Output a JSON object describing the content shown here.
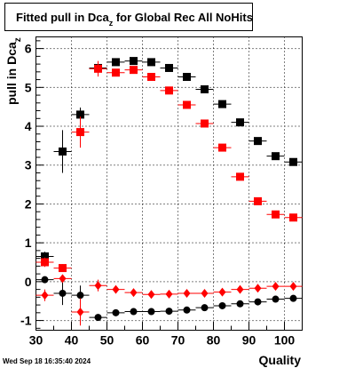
{
  "title": {
    "prefix": "Fitted pull in Dca",
    "subscript": "z",
    "suffix": " for Global Rec All NoHits"
  },
  "timestamp": "Wed Sep 18 16:35:40 2024",
  "chart_data": {
    "type": "scatter",
    "title": "Fitted pull in Dca_z for Global Rec All NoHits",
    "xlabel": "Quality",
    "ylabel": {
      "prefix": "pull in Dca",
      "subscript": "z"
    },
    "xlim": [
      30,
      105
    ],
    "ylim": [
      -1.25,
      6.3
    ],
    "xticks": [
      30,
      40,
      50,
      60,
      70,
      80,
      90,
      100
    ],
    "yticks": [
      -1,
      0,
      1,
      2,
      3,
      4,
      5,
      6
    ],
    "grid": true,
    "series": [
      {
        "marker": "square",
        "color": "#000000",
        "points": [
          {
            "x": 32.5,
            "y": 0.65,
            "yerr": 0.12
          },
          {
            "x": 37.5,
            "y": 3.35,
            "yerr": 0.55
          },
          {
            "x": 42.5,
            "y": 4.3,
            "yerr": 0.18
          },
          {
            "x": 47.5,
            "y": 5.5,
            "yerr": 0.08
          },
          {
            "x": 52.5,
            "y": 5.65,
            "yerr": 0.06
          },
          {
            "x": 57.5,
            "y": 5.68,
            "yerr": 0.05
          },
          {
            "x": 62.5,
            "y": 5.65,
            "yerr": 0.05
          },
          {
            "x": 67.5,
            "y": 5.5,
            "yerr": 0.05
          },
          {
            "x": 72.5,
            "y": 5.27,
            "yerr": 0.05
          },
          {
            "x": 77.5,
            "y": 4.95,
            "yerr": 0.05
          },
          {
            "x": 82.5,
            "y": 4.57,
            "yerr": 0.05
          },
          {
            "x": 87.5,
            "y": 4.1,
            "yerr": 0.05
          },
          {
            "x": 92.5,
            "y": 3.62,
            "yerr": 0.05
          },
          {
            "x": 97.5,
            "y": 3.23,
            "yerr": 0.05
          },
          {
            "x": 102.5,
            "y": 3.08,
            "yerr": 0.05
          }
        ]
      },
      {
        "marker": "square",
        "color": "#ff0000",
        "points": [
          {
            "x": 32.5,
            "y": 0.5,
            "yerr": 0.12
          },
          {
            "x": 37.5,
            "y": 0.35,
            "yerr": 0.1
          },
          {
            "x": 42.5,
            "y": 3.85,
            "yerr": 0.4
          },
          {
            "x": 47.5,
            "y": 5.48,
            "yerr": 0.2
          },
          {
            "x": 52.5,
            "y": 5.38,
            "yerr": 0.08
          },
          {
            "x": 57.5,
            "y": 5.45,
            "yerr": 0.07
          },
          {
            "x": 62.5,
            "y": 5.27,
            "yerr": 0.06
          },
          {
            "x": 67.5,
            "y": 4.92,
            "yerr": 0.05
          },
          {
            "x": 72.5,
            "y": 4.55,
            "yerr": 0.05
          },
          {
            "x": 77.5,
            "y": 4.07,
            "yerr": 0.05
          },
          {
            "x": 82.5,
            "y": 3.45,
            "yerr": 0.05
          },
          {
            "x": 87.5,
            "y": 2.7,
            "yerr": 0.05
          },
          {
            "x": 92.5,
            "y": 2.07,
            "yerr": 0.05
          },
          {
            "x": 97.5,
            "y": 1.73,
            "yerr": 0.05
          },
          {
            "x": 102.5,
            "y": 1.65,
            "yerr": 0.05
          }
        ]
      },
      {
        "marker": "circle",
        "color": "#000000",
        "points": [
          {
            "x": 32.5,
            "y": 0.05,
            "yerr": 0.08
          },
          {
            "x": 37.5,
            "y": -0.3,
            "yerr": 0.3
          },
          {
            "x": 42.5,
            "y": -0.35,
            "yerr": 0.25
          },
          {
            "x": 47.5,
            "y": -0.92,
            "yerr": 0.05
          },
          {
            "x": 52.5,
            "y": -0.8,
            "yerr": 0.05
          },
          {
            "x": 57.5,
            "y": -0.77,
            "yerr": 0.04
          },
          {
            "x": 62.5,
            "y": -0.77,
            "yerr": 0.04
          },
          {
            "x": 67.5,
            "y": -0.76,
            "yerr": 0.04
          },
          {
            "x": 72.5,
            "y": -0.73,
            "yerr": 0.04
          },
          {
            "x": 77.5,
            "y": -0.67,
            "yerr": 0.04
          },
          {
            "x": 82.5,
            "y": -0.62,
            "yerr": 0.04
          },
          {
            "x": 87.5,
            "y": -0.57,
            "yerr": 0.04
          },
          {
            "x": 92.5,
            "y": -0.52,
            "yerr": 0.04
          },
          {
            "x": 97.5,
            "y": -0.45,
            "yerr": 0.04
          },
          {
            "x": 102.5,
            "y": -0.43,
            "yerr": 0.04
          }
        ]
      },
      {
        "marker": "diamond",
        "color": "#ff0000",
        "points": [
          {
            "x": 32.5,
            "y": -0.35,
            "yerr": 0.15
          },
          {
            "x": 37.5,
            "y": 0.08,
            "yerr": 0.1
          },
          {
            "x": 42.5,
            "y": -0.78,
            "yerr": 0.35
          },
          {
            "x": 47.5,
            "y": -0.1,
            "yerr": 0.15
          },
          {
            "x": 52.5,
            "y": -0.2,
            "yerr": 0.06
          },
          {
            "x": 57.5,
            "y": -0.28,
            "yerr": 0.05
          },
          {
            "x": 62.5,
            "y": -0.33,
            "yerr": 0.05
          },
          {
            "x": 67.5,
            "y": -0.32,
            "yerr": 0.05
          },
          {
            "x": 72.5,
            "y": -0.3,
            "yerr": 0.05
          },
          {
            "x": 77.5,
            "y": -0.3,
            "yerr": 0.05
          },
          {
            "x": 82.5,
            "y": -0.27,
            "yerr": 0.05
          },
          {
            "x": 87.5,
            "y": -0.2,
            "yerr": 0.05
          },
          {
            "x": 92.5,
            "y": -0.17,
            "yerr": 0.05
          },
          {
            "x": 97.5,
            "y": -0.12,
            "yerr": 0.05
          },
          {
            "x": 102.5,
            "y": -0.12,
            "yerr": 0.05
          }
        ]
      }
    ]
  }
}
